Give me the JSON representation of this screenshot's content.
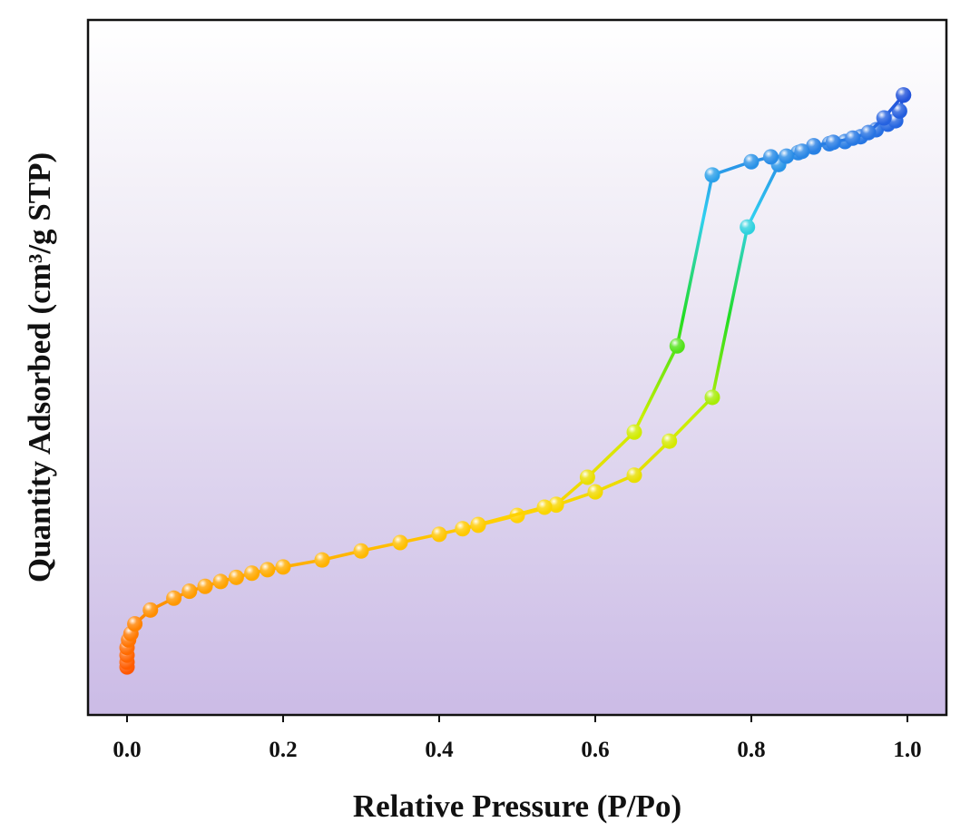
{
  "chart_data": {
    "type": "line",
    "x_label": "Relative Pressure (P/Po)",
    "y_label": "Quantity Adsorbed (cm³/g STP)",
    "xlim": [
      -0.05,
      1.05
    ],
    "ylim": [
      0,
      100
    ],
    "xticks": [
      {
        "value": 0,
        "label": "0.0"
      },
      {
        "value": 0.2,
        "label": "0.2"
      },
      {
        "value": 0.4,
        "label": "0.4"
      },
      {
        "value": 0.6,
        "label": "0.6"
      },
      {
        "value": 0.8,
        "label": "0.8"
      },
      {
        "value": 1,
        "label": "1.0"
      }
    ],
    "colormap": [
      "#ff2a00",
      "#ff8a00",
      "#ffd200",
      "#c8f000",
      "#22dd22",
      "#30d0f0",
      "#2563e0",
      "#1a22c8"
    ],
    "series": [
      {
        "x": [
          0,
          0,
          0,
          0,
          0.002,
          0.005,
          0.01,
          0.03,
          0.06,
          0.08,
          0.1,
          0.12,
          0.14,
          0.16,
          0.18,
          0.2,
          0.25,
          0.3,
          0.35,
          0.4,
          0.45,
          0.5,
          0.55,
          0.6,
          0.65,
          0.695,
          0.75,
          0.795,
          0.835,
          0.86,
          0.88,
          0.9,
          0.92,
          0.94,
          0.96,
          0.975,
          0.985,
          0.99,
          0.995
        ],
        "values": [
          6.9,
          7.6,
          8.6,
          9.7,
          10.8,
          11.7,
          13.1,
          15.1,
          16.8,
          17.8,
          18.5,
          19.2,
          19.8,
          20.4,
          20.9,
          21.3,
          22.3,
          23.6,
          24.8,
          26.0,
          27.3,
          28.7,
          30.2,
          32.1,
          34.5,
          39.4,
          45.7,
          70.2,
          79.2,
          80.9,
          81.7,
          82.2,
          82.5,
          83.2,
          84.2,
          85.0,
          85.5,
          86.9,
          89.2
        ]
      },
      {
        "x": [
          0.995,
          0.97,
          0.95,
          0.93,
          0.905,
          0.88,
          0.865,
          0.845,
          0.825,
          0.8,
          0.75,
          0.705,
          0.65,
          0.59,
          0.55,
          0.535,
          0.45,
          0.43
        ],
        "values": [
          89.2,
          85.9,
          83.8,
          83.0,
          82.4,
          81.9,
          81.1,
          80.4,
          80.3,
          79.6,
          77.7,
          53.1,
          40.7,
          34.2,
          30.3,
          29.9,
          27.4,
          26.8
        ]
      }
    ]
  }
}
